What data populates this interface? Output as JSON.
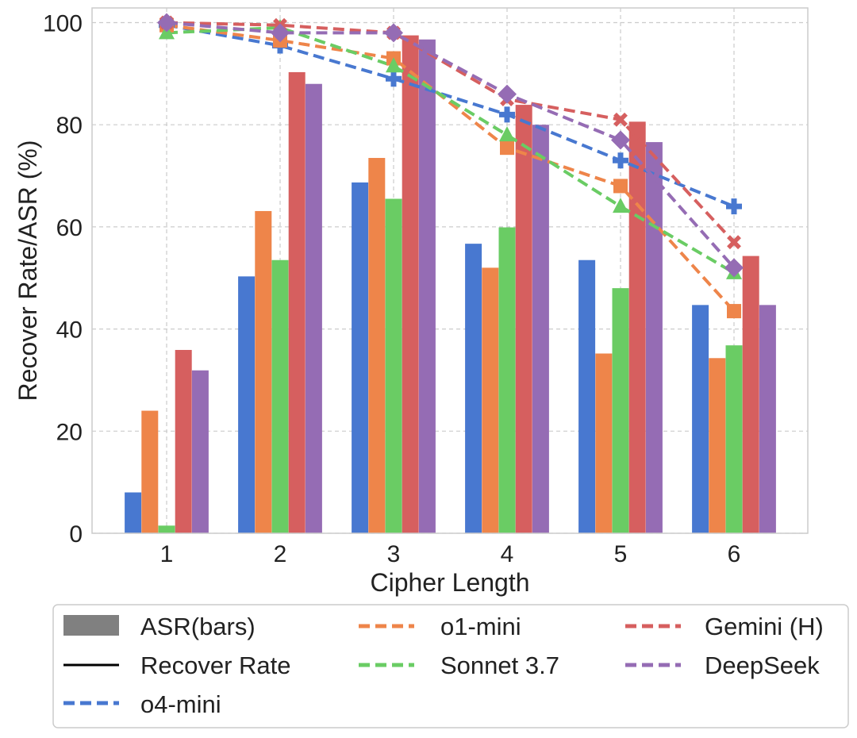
{
  "chart_data": {
    "type": "bar+line",
    "title": "",
    "xlabel": "Cipher Length",
    "ylabel": "Recover Rate/ASR (%)",
    "categories": [
      "1",
      "2",
      "3",
      "4",
      "5",
      "6"
    ],
    "ylim": [
      0,
      103
    ],
    "yticks": [
      0,
      20,
      40,
      60,
      80,
      100
    ],
    "grid": true,
    "legend_position": "bottom",
    "legend": {
      "bars_label": "ASR(bars)",
      "line_label": "Recover Rate",
      "bars_color": "#808080",
      "line_color": "#000000"
    },
    "series": [
      {
        "name": "o4-mini",
        "color": "#4878d0",
        "marker": "plus",
        "asr": [
          8,
          50.3,
          68.7,
          56.7,
          53.5,
          44.7
        ],
        "recover_rate": [
          99.5,
          95.5,
          89,
          82,
          73,
          64
        ]
      },
      {
        "name": "o1-mini",
        "color": "#ee854a",
        "marker": "square",
        "asr": [
          24,
          63.1,
          73.5,
          52,
          35.2,
          34.3
        ],
        "recover_rate": [
          99.5,
          96.5,
          93,
          75.5,
          68,
          43.5
        ]
      },
      {
        "name": "Sonnet 3.7",
        "color": "#6acc64",
        "marker": "triangle",
        "asr": [
          1.5,
          53.5,
          65.5,
          59.9,
          48,
          36.8
        ],
        "recover_rate": [
          98,
          99,
          91.5,
          78,
          64,
          51
        ]
      },
      {
        "name": "Gemini (H)",
        "color": "#d65f5f",
        "marker": "x",
        "asr": [
          35.9,
          90.3,
          97.5,
          83.9,
          80.6,
          54.3
        ],
        "recover_rate": [
          100,
          99.5,
          98,
          85,
          81,
          57
        ]
      },
      {
        "name": "DeepSeek",
        "color": "#956cb4",
        "marker": "diamond",
        "asr": [
          31.9,
          88,
          96.7,
          80,
          76.6,
          44.7
        ],
        "recover_rate": [
          100,
          98,
          98,
          86,
          77,
          52
        ]
      }
    ]
  }
}
